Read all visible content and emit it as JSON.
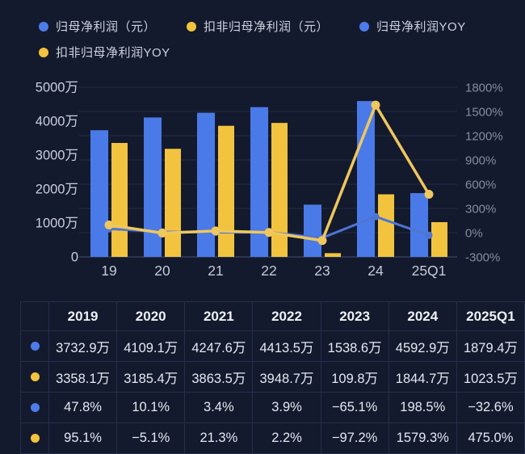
{
  "colors": {
    "background": "#141a2d",
    "bar_blue": "#4a7ae8",
    "bar_yellow": "#f2c33e",
    "line_blue": "#4f74d4",
    "line_yellow": "#eec75e",
    "grid": "#222b45",
    "baseline": "#2b3452",
    "axis_text_left": "#c9cfdd",
    "axis_text_right": "#848ba0",
    "x_label": "#c3c9d6",
    "table_border": "#242e4d"
  },
  "legend": {
    "items": [
      {
        "label": "归母净利润（元）",
        "color": "#4d7cea"
      },
      {
        "label": "扣非归母净利润（元）",
        "color": "#f2c33e"
      },
      {
        "label": "归母净利润YOY",
        "color": "#4d7cea"
      },
      {
        "label": "扣非归母净利润YOY",
        "color": "#f2c33e"
      }
    ]
  },
  "chart_data": {
    "type": "bar",
    "subtype": "bar+line combo, dual axis",
    "categories": [
      "19",
      "20",
      "21",
      "22",
      "23",
      "24",
      "25Q1"
    ],
    "series": [
      {
        "name": "归母净利润（元）",
        "kind": "bar",
        "axis": "left",
        "unit": "万",
        "color": "#4a7ae8",
        "values": [
          3732.9,
          4109.1,
          4247.6,
          4413.5,
          1538.6,
          4592.9,
          1879.4
        ]
      },
      {
        "name": "扣非归母净利润（元）",
        "kind": "bar",
        "axis": "left",
        "unit": "万",
        "color": "#f2c33e",
        "values": [
          3358.1,
          3185.4,
          3863.5,
          3948.7,
          109.8,
          1844.7,
          1023.5
        ]
      },
      {
        "name": "归母净利润YOY",
        "kind": "line",
        "axis": "right",
        "unit": "%",
        "color": "#4f74d4",
        "values": [
          47.8,
          10.1,
          3.4,
          3.9,
          -65.1,
          198.5,
          -32.6
        ]
      },
      {
        "name": "扣非归母净利润YOY",
        "kind": "line",
        "axis": "right",
        "unit": "%",
        "color": "#eec75e",
        "values": [
          95.1,
          -5.1,
          21.3,
          2.2,
          -97.2,
          1579.3,
          475.0
        ]
      }
    ],
    "left_axis": {
      "ticks": [
        "5000万",
        "4000万",
        "3000万",
        "2000万",
        "1000万",
        "0"
      ],
      "min": 0,
      "max": 5000
    },
    "right_axis": {
      "ticks": [
        "1800%",
        "1500%",
        "1200%",
        "900%",
        "600%",
        "300%",
        "0%",
        "-300%"
      ],
      "min": -300,
      "max": 1800
    },
    "grid": true,
    "legend_position": "top",
    "title": "",
    "xlabel": "",
    "ylabel": ""
  },
  "table": {
    "header": [
      "2019",
      "2020",
      "2021",
      "2022",
      "2023",
      "2024",
      "2025Q1"
    ],
    "rows": [
      {
        "dot": "#4d7cea",
        "values": [
          "3732.9万",
          "4109.1万",
          "4247.6万",
          "4413.5万",
          "1538.6万",
          "4592.9万",
          "1879.4万"
        ]
      },
      {
        "dot": "#f2c33e",
        "values": [
          "3358.1万",
          "3185.4万",
          "3863.5万",
          "3948.7万",
          "109.8万",
          "1844.7万",
          "1023.5万"
        ]
      },
      {
        "dot": "#4d7cea",
        "values": [
          "47.8%",
          "10.1%",
          "3.4%",
          "3.9%",
          "−65.1%",
          "198.5%",
          "−32.6%"
        ]
      },
      {
        "dot": "#f2c33e",
        "values": [
          "95.1%",
          "−5.1%",
          "21.3%",
          "2.2%",
          "−97.2%",
          "1579.3%",
          "475.0%"
        ]
      }
    ]
  }
}
